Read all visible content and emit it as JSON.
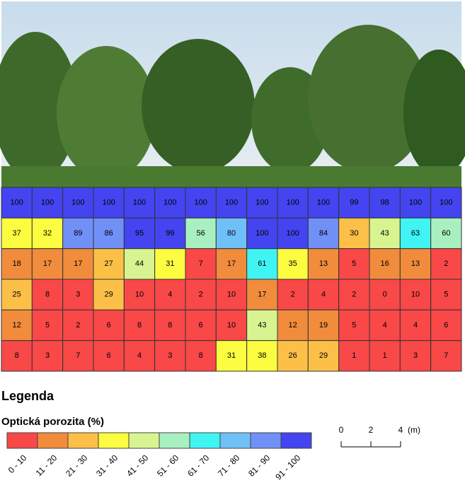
{
  "chart_data": {
    "type": "heatmap",
    "rows": [
      [
        100,
        100,
        100,
        100,
        100,
        100,
        100,
        100,
        100,
        100,
        100,
        99,
        98,
        100,
        100
      ],
      [
        37,
        32,
        89,
        86,
        95,
        99,
        56,
        80,
        100,
        100,
        84,
        30,
        43,
        63,
        60
      ],
      [
        18,
        17,
        17,
        27,
        44,
        31,
        7,
        17,
        61,
        35,
        13,
        5,
        16,
        13,
        2
      ],
      [
        25,
        8,
        3,
        29,
        10,
        4,
        2,
        10,
        17,
        2,
        4,
        2,
        0,
        10,
        5
      ],
      [
        12,
        5,
        2,
        6,
        8,
        8,
        6,
        10,
        43,
        12,
        19,
        5,
        4,
        4,
        6
      ],
      [
        8,
        3,
        7,
        6,
        4,
        3,
        8,
        31,
        38,
        26,
        29,
        1,
        1,
        3,
        7
      ]
    ],
    "legend_title": "Legenda",
    "scale_title": "Optická porozita (%)",
    "legend": [
      {
        "label": "0 - 10",
        "color": "#f84848"
      },
      {
        "label": "11 - 20",
        "color": "#f08c3c"
      },
      {
        "label": "21 - 30",
        "color": "#fcc048"
      },
      {
        "label": "31 - 40",
        "color": "#fcfc40"
      },
      {
        "label": "41 - 50",
        "color": "#d8f490"
      },
      {
        "label": "51 - 60",
        "color": "#a8f0c0"
      },
      {
        "label": "61 - 70",
        "color": "#40f4f4"
      },
      {
        "label": "71 - 80",
        "color": "#70c0f8"
      },
      {
        "label": "81 - 90",
        "color": "#7090f8"
      },
      {
        "label": "91 - 100",
        "color": "#4444f0"
      }
    ],
    "scale_bar": {
      "ticks": [
        0,
        2,
        4
      ],
      "unit": "(m)"
    }
  }
}
